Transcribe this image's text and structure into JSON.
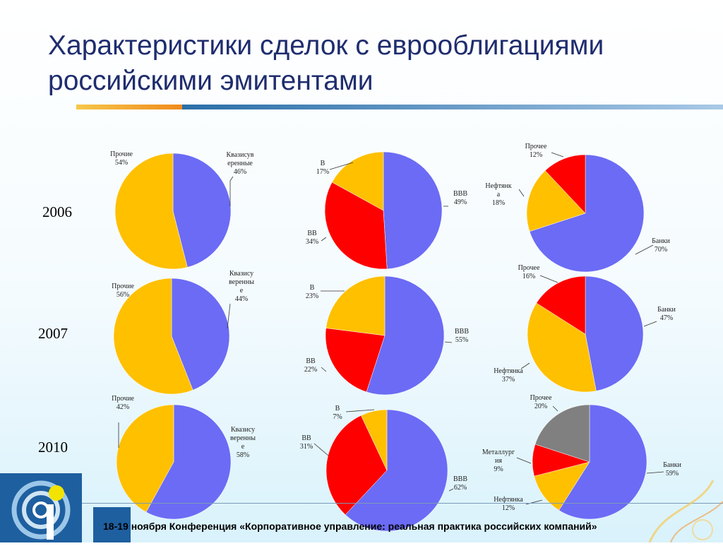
{
  "title": "Характеристики сделок с еврооблигациями российскими эмитентами",
  "years": [
    "2006",
    "2007",
    "2010"
  ],
  "footer": "18-19 ноября Конференция «Корпоративное управление: реальная практика российских компаний»",
  "colors": {
    "blue": "#6b6bf5",
    "yellow": "#ffc000",
    "red": "#ff0000",
    "gray": "#808080"
  },
  "chart_data": [
    {
      "type": "pie",
      "group": "issuer_type",
      "year": "2006",
      "slices": [
        {
          "label": "Квазисуверенные",
          "display": "Квазисув|еренные",
          "value": 46,
          "color": "blue"
        },
        {
          "label": "Прочие",
          "display": "Прочие",
          "value": 54,
          "color": "yellow"
        }
      ]
    },
    {
      "type": "pie",
      "group": "rating",
      "year": "2006",
      "slices": [
        {
          "label": "BBB",
          "display": "BBB",
          "value": 49,
          "color": "blue"
        },
        {
          "label": "BB",
          "display": "BB",
          "value": 34,
          "color": "red"
        },
        {
          "label": "B",
          "display": "B",
          "value": 17,
          "color": "yellow"
        }
      ]
    },
    {
      "type": "pie",
      "group": "industry",
      "year": "2006",
      "slices": [
        {
          "label": "Банки",
          "display": "Банки",
          "value": 70,
          "color": "blue"
        },
        {
          "label": "Нефтянка",
          "display": "Нефтянк|а",
          "value": 18,
          "color": "yellow"
        },
        {
          "label": "Прочее",
          "display": "Прочее",
          "value": 12,
          "color": "red"
        }
      ]
    },
    {
      "type": "pie",
      "group": "issuer_type",
      "year": "2007",
      "slices": [
        {
          "label": "Квазисуверенные",
          "display": "Квазису|веренны|е",
          "value": 44,
          "color": "blue"
        },
        {
          "label": "Прочие",
          "display": "Прочие",
          "value": 56,
          "color": "yellow"
        }
      ]
    },
    {
      "type": "pie",
      "group": "rating",
      "year": "2007",
      "slices": [
        {
          "label": "BBB",
          "display": "BBB",
          "value": 55,
          "color": "blue"
        },
        {
          "label": "BB",
          "display": "BB",
          "value": 22,
          "color": "red"
        },
        {
          "label": "B",
          "display": "B",
          "value": 23,
          "color": "yellow"
        }
      ]
    },
    {
      "type": "pie",
      "group": "industry",
      "year": "2007",
      "slices": [
        {
          "label": "Банки",
          "display": "Банки",
          "value": 47,
          "color": "blue"
        },
        {
          "label": "Нефтянка",
          "display": "Нефтянка",
          "value": 37,
          "color": "yellow"
        },
        {
          "label": "Прочее",
          "display": "Прочее",
          "value": 16,
          "color": "red"
        }
      ]
    },
    {
      "type": "pie",
      "group": "issuer_type",
      "year": "2010",
      "slices": [
        {
          "label": "Квазисуверенные",
          "display": "Квазису|веренны|е",
          "value": 58,
          "color": "blue"
        },
        {
          "label": "Прочие",
          "display": "Прочие",
          "value": 42,
          "color": "yellow"
        }
      ]
    },
    {
      "type": "pie",
      "group": "rating",
      "year": "2010",
      "slices": [
        {
          "label": "BBB",
          "display": "BBB",
          "value": 62,
          "color": "blue"
        },
        {
          "label": "BB",
          "display": "BB",
          "value": 31,
          "color": "red"
        },
        {
          "label": "B",
          "display": "B",
          "value": 7,
          "color": "yellow"
        }
      ]
    },
    {
      "type": "pie",
      "group": "industry",
      "year": "2010",
      "slices": [
        {
          "label": "Банки",
          "display": "Банки",
          "value": 59,
          "color": "blue"
        },
        {
          "label": "Нефтянка",
          "display": "Нефтянка",
          "value": 12,
          "color": "yellow"
        },
        {
          "label": "Металлургия",
          "display": "Металлург|ия",
          "value": 9,
          "color": "red"
        },
        {
          "label": "Прочее",
          "display": "Прочее",
          "value": 20,
          "color": "gray"
        }
      ]
    }
  ]
}
